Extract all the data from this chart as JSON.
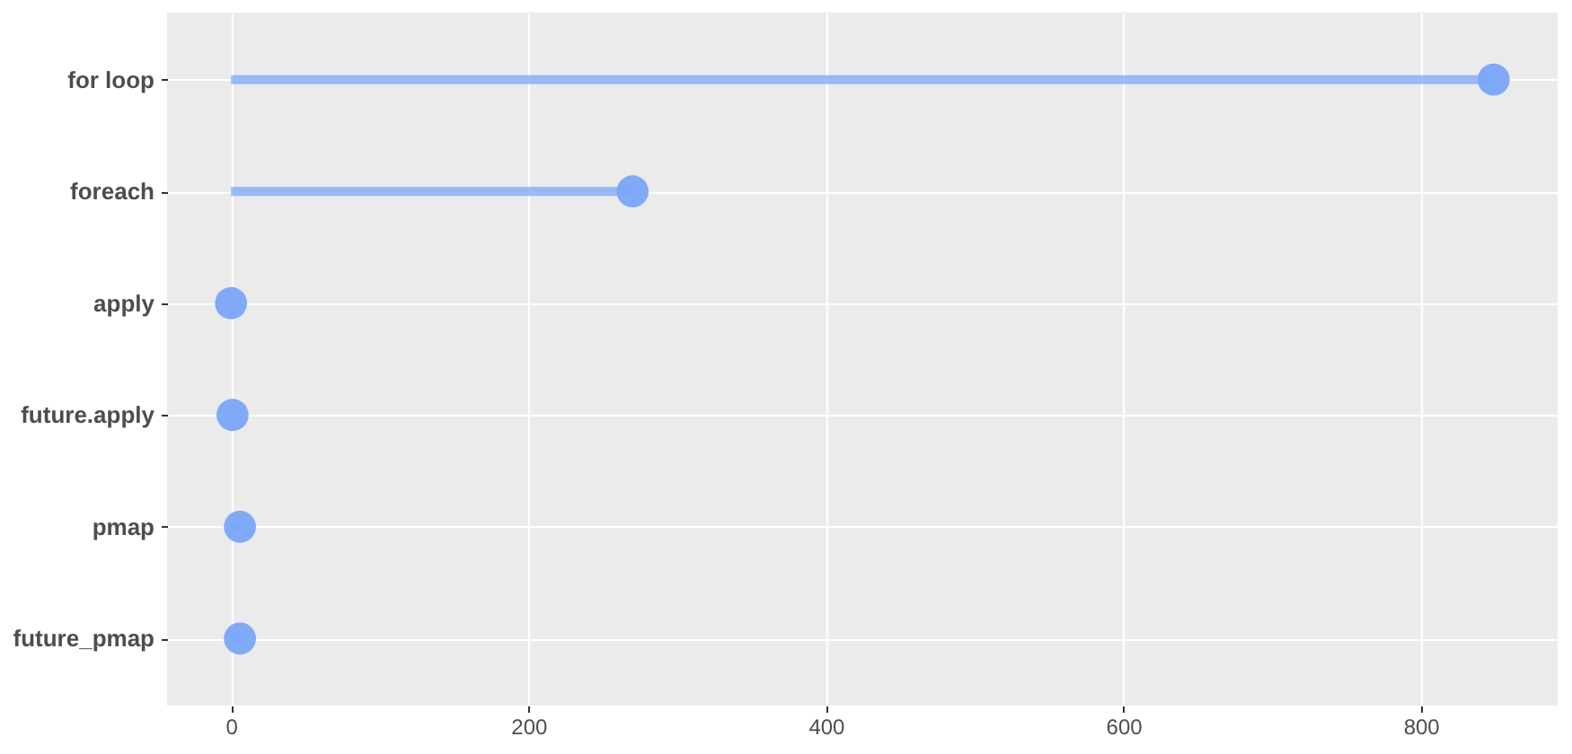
{
  "chart_data": {
    "type": "lollipop",
    "orientation": "horizontal",
    "categories": [
      "for loop",
      "foreach",
      "apply",
      "future.apply",
      "pmap",
      "future_pmap"
    ],
    "values": [
      849,
      270,
      0,
      1,
      6,
      6
    ],
    "color": "#7aa7f8",
    "marker": "circle",
    "xlim": [
      -43,
      892
    ],
    "xticks": [
      0,
      200,
      400,
      600,
      800
    ],
    "grid": true
  }
}
